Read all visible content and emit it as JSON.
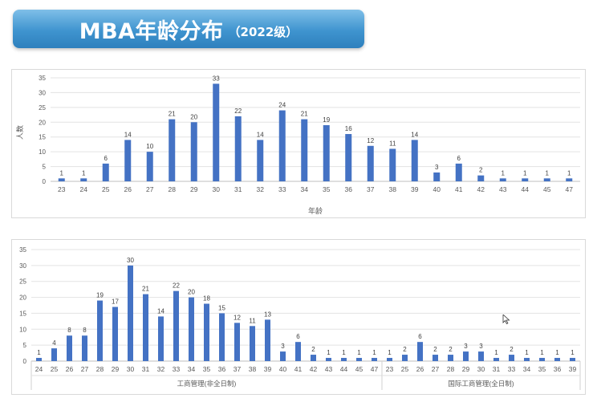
{
  "banner": {
    "title": "MBA年龄分布",
    "subtitle": "（2022级）"
  },
  "colors": {
    "bar": "#4472c4",
    "banner": "#3f94cf",
    "grid": "#e3e3e3",
    "axis_text": "#595959"
  },
  "chart_data": [
    {
      "type": "bar",
      "title": "",
      "xlabel": "年龄",
      "ylabel": "人数",
      "ylim": [
        0,
        35
      ],
      "yticks": [
        0,
        5,
        10,
        15,
        20,
        25,
        30,
        35
      ],
      "grid": true,
      "categories": [
        "23",
        "24",
        "25",
        "26",
        "27",
        "28",
        "29",
        "30",
        "31",
        "32",
        "33",
        "34",
        "35",
        "36",
        "37",
        "38",
        "39",
        "40",
        "41",
        "42",
        "43",
        "44",
        "45",
        "47"
      ],
      "values": [
        1,
        1,
        6,
        14,
        10,
        21,
        20,
        33,
        22,
        14,
        24,
        21,
        19,
        16,
        12,
        11,
        14,
        3,
        6,
        2,
        1,
        1,
        1,
        1
      ]
    },
    {
      "type": "bar",
      "title": "",
      "xlabel": "",
      "ylabel": "",
      "ylim": [
        0,
        35
      ],
      "yticks": [
        0,
        5,
        10,
        15,
        20,
        25,
        30,
        35
      ],
      "grid": true,
      "groups": [
        {
          "name": "工商管理(非全日制)",
          "categories": [
            "24",
            "25",
            "26",
            "27",
            "28",
            "29",
            "30",
            "31",
            "32",
            "33",
            "34",
            "35",
            "36",
            "37",
            "38",
            "39",
            "40",
            "41",
            "42",
            "43",
            "44",
            "45",
            "47"
          ],
          "values": [
            1,
            4,
            8,
            8,
            19,
            17,
            30,
            21,
            14,
            22,
            20,
            18,
            15,
            12,
            11,
            13,
            3,
            6,
            2,
            1,
            1,
            1,
            1
          ]
        },
        {
          "name": "国际工商管理(全日制)",
          "categories": [
            "23",
            "25",
            "26",
            "27",
            "28",
            "29",
            "30",
            "31",
            "33",
            "34",
            "35",
            "36",
            "39"
          ],
          "values": [
            1,
            2,
            6,
            2,
            2,
            3,
            3,
            1,
            2,
            1,
            1,
            1,
            1
          ]
        }
      ]
    }
  ]
}
